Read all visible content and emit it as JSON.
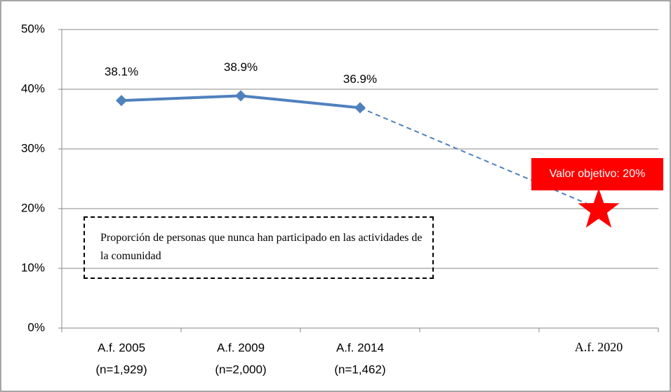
{
  "chart_data": {
    "type": "line",
    "categories": [
      "A.f. 2005",
      "A.f. 2009",
      "A.f. 2014",
      null,
      "A.f. 2020"
    ],
    "category_notes": [
      "(n=1,929)",
      "(n=2,000)",
      "(n=1,462)"
    ],
    "series": [
      {
        "color": "#4f81bd",
        "values": [
          38.1,
          38.9,
          36.9,
          null,
          null
        ],
        "value_labels": [
          "38.1%",
          "38.9%",
          "36.9%",
          null,
          null
        ]
      },
      {
        "color": "#4f81bd",
        "dashed": true,
        "values": [
          null,
          null,
          36.9,
          null,
          20
        ],
        "target_color": "#ff0000"
      }
    ],
    "ylim": [
      0,
      50
    ],
    "yticks": [
      {
        "value": 0,
        "label": "0%"
      },
      {
        "value": 10,
        "label": "10%"
      },
      {
        "value": 20,
        "label": "20%"
      },
      {
        "value": 30,
        "label": "30%"
      },
      {
        "value": 40,
        "label": "40%"
      },
      {
        "value": 50,
        "label": "50%"
      }
    ],
    "grid": true,
    "annotation": "Proporción de personas que nunca han participado en las actividades de la comunidad",
    "target_label": "Valor objetivo: 20%"
  }
}
